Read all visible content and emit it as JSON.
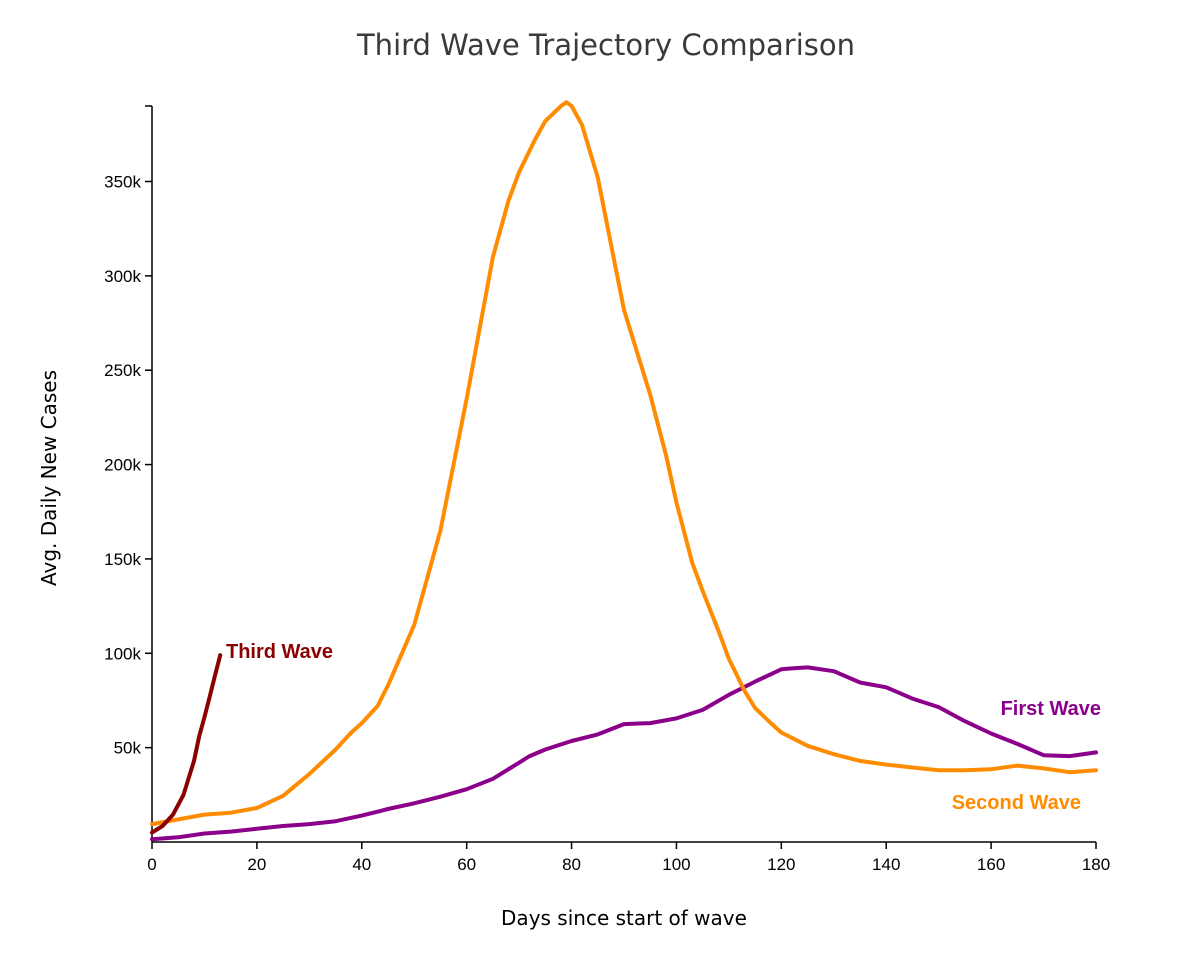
{
  "chart_data": {
    "type": "line",
    "title": "Third Wave Trajectory Comparison",
    "xlabel": "Days since start of wave",
    "ylabel": "Avg. Daily New Cases",
    "xlim": [
      0,
      180
    ],
    "ylim": [
      0,
      390000
    ],
    "x_ticks": [
      0,
      20,
      40,
      60,
      80,
      100,
      120,
      140,
      160,
      180
    ],
    "x_tick_labels": [
      "0",
      "20",
      "40",
      "60",
      "80",
      "100",
      "120",
      "140",
      "160",
      "180"
    ],
    "y_ticks": [
      50000,
      100000,
      150000,
      200000,
      250000,
      300000,
      350000
    ],
    "y_tick_labels": [
      "50k",
      "100k",
      "150k",
      "200k",
      "250k",
      "300k",
      "350k"
    ],
    "grid": false,
    "legend": "inline labels",
    "series": [
      {
        "name": "First Wave",
        "color": "#8B008B",
        "x": [
          0,
          5,
          10,
          15,
          20,
          25,
          30,
          35,
          40,
          45,
          50,
          55,
          60,
          65,
          70,
          72,
          75,
          80,
          85,
          90,
          95,
          100,
          105,
          110,
          115,
          120,
          122,
          125,
          130,
          135,
          140,
          145,
          150,
          155,
          160,
          165,
          170,
          175,
          180
        ],
        "y": [
          1500,
          2500,
          4500,
          5500,
          7000,
          8500,
          9500,
          11000,
          14000,
          17500,
          20500,
          24000,
          28000,
          33500,
          42000,
          45500,
          49000,
          53500,
          57000,
          62500,
          63000,
          65500,
          70000,
          78000,
          85000,
          91500,
          92000,
          92500,
          90500,
          84500,
          82000,
          76000,
          71500,
          64000,
          57500,
          52000,
          46000,
          45500,
          47500
        ]
      },
      {
        "name": "Second Wave",
        "color": "#FF8C00",
        "x": [
          0,
          5,
          10,
          15,
          20,
          25,
          30,
          35,
          38,
          40,
          43,
          45,
          50,
          55,
          60,
          63,
          65,
          68,
          70,
          73,
          75,
          78,
          79,
          80,
          82,
          85,
          88,
          90,
          93,
          95,
          98,
          100,
          103,
          105,
          108,
          110,
          113,
          115,
          118,
          120,
          125,
          130,
          135,
          140,
          145,
          150,
          155,
          160,
          165,
          170,
          175,
          180
        ],
        "y": [
          9500,
          12000,
          14500,
          15500,
          18000,
          24500,
          36000,
          49000,
          58000,
          63000,
          72000,
          83000,
          115000,
          165000,
          235000,
          280000,
          310000,
          340000,
          355000,
          372000,
          382000,
          390000,
          392000,
          390000,
          380000,
          352000,
          310000,
          282000,
          255000,
          237000,
          205000,
          180000,
          148000,
          133000,
          112000,
          97000,
          80000,
          71000,
          63000,
          58000,
          51000,
          46500,
          43000,
          41000,
          39500,
          38000,
          38000,
          38500,
          40500,
          39000,
          37000,
          38000
        ]
      },
      {
        "name": "Third Wave",
        "color": "#8B0000",
        "x": [
          0,
          2,
          4,
          6,
          8,
          9,
          10,
          11,
          12,
          13
        ],
        "y": [
          5000,
          8500,
          14500,
          25000,
          43000,
          56000,
          66000,
          77000,
          88000,
          99000
        ]
      }
    ]
  }
}
